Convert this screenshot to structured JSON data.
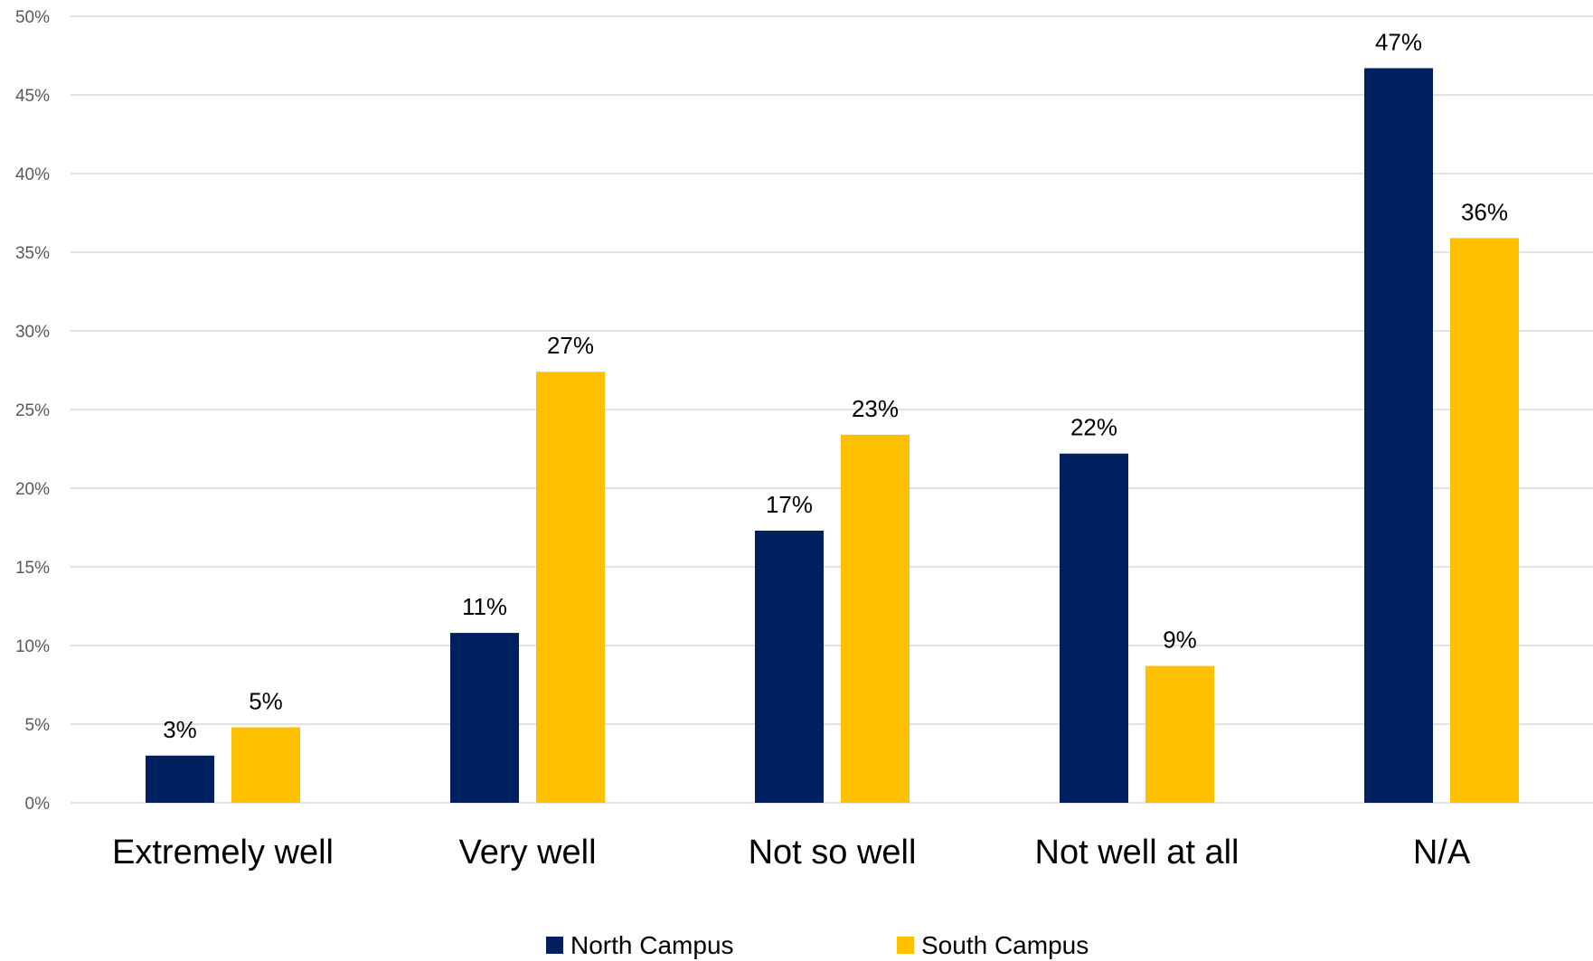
{
  "chart_data": {
    "type": "bar",
    "title": "",
    "xlabel": "",
    "ylabel": "",
    "categories": [
      "Extremely well",
      "Very well",
      "Not so well",
      "Not well at all",
      "N/A"
    ],
    "series": [
      {
        "name": "North Campus",
        "color": "#002060",
        "values": [
          3,
          10.8,
          17.3,
          22.2,
          46.7
        ],
        "labels": [
          "3%",
          "11%",
          "17%",
          "22%",
          "47%"
        ]
      },
      {
        "name": "South Campus",
        "color": "#FFC000",
        "values": [
          4.8,
          27.4,
          23.4,
          8.7,
          35.9
        ],
        "labels": [
          "5%",
          "27%",
          "23%",
          "9%",
          "36%"
        ]
      }
    ],
    "ylim": [
      0,
      50
    ],
    "yticks": [
      0,
      5,
      10,
      15,
      20,
      25,
      30,
      35,
      40,
      45,
      50
    ],
    "ytick_labels": [
      "0%",
      "5%",
      "10%",
      "15%",
      "20%",
      "25%",
      "30%",
      "35%",
      "40%",
      "45%",
      "50%"
    ],
    "grid": true,
    "gridline_color": "#d9d9d9",
    "legend_position": "bottom"
  }
}
